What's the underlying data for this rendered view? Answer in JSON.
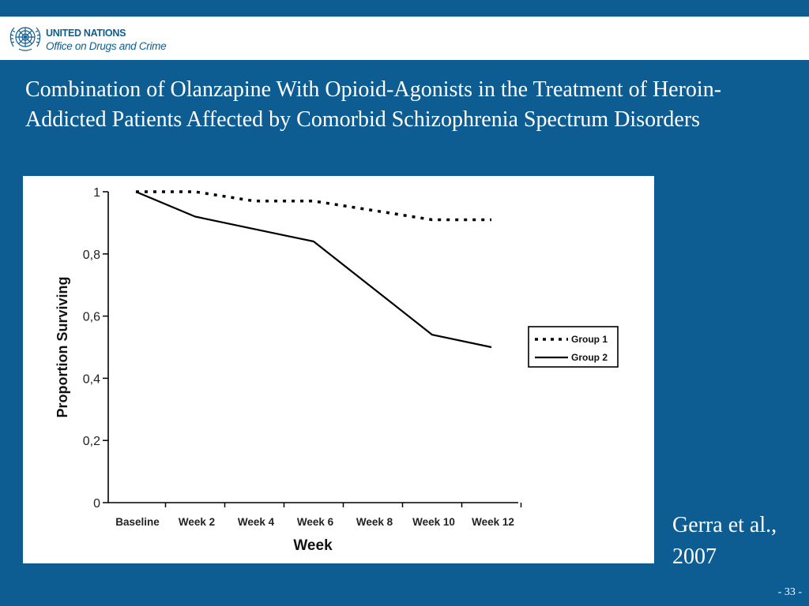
{
  "header": {
    "org_line1": "UNITED NATIONS",
    "org_line2": "Office on Drugs and Crime",
    "emblem_icon": "un-emblem-icon",
    "brand_color": "#0d5d93"
  },
  "slide": {
    "title": "Combination of Olanzapine With Opioid-Agonists in the Treatment of Heroin-Addicted Patients Affected by Comorbid Schizophrenia Spectrum Disorders",
    "citation_line1": "Gerra et al.,",
    "citation_line2": "2007",
    "page_number": "- 33 -",
    "background_color": "#0d5d93"
  },
  "chart_data": {
    "type": "line",
    "categories": [
      "Baseline",
      "Week 2",
      "Week 4",
      "Week 6",
      "Week 8",
      "Week 10",
      "Week 12"
    ],
    "series": [
      {
        "name": "Group 1",
        "style": "dotted",
        "values": [
          1.0,
          1.0,
          0.97,
          0.97,
          0.94,
          0.91,
          0.91
        ]
      },
      {
        "name": "Group 2",
        "style": "solid",
        "values": [
          1.0,
          0.92,
          0.88,
          0.84,
          0.69,
          0.54,
          0.5
        ]
      }
    ],
    "xlabel": "Week",
    "ylabel": "Proportion Surviving",
    "ylim": [
      0,
      1
    ],
    "yticks": [
      0,
      0.2,
      0.4,
      0.6,
      0.8,
      1
    ],
    "ytick_labels": [
      "0",
      "0,2",
      "0,4",
      "0,6",
      "0,8",
      "1"
    ],
    "grid": false,
    "legend_position": "right"
  }
}
